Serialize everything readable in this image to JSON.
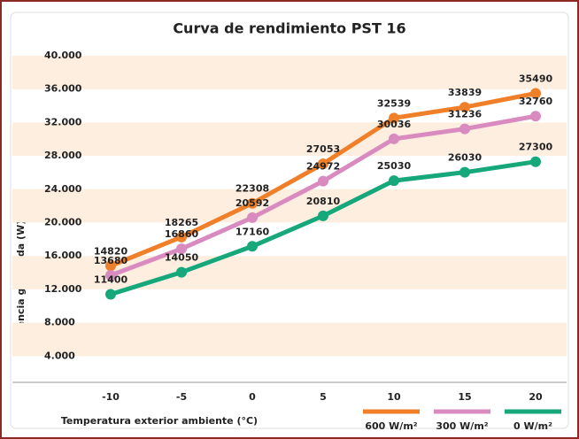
{
  "chart_data": {
    "type": "line",
    "title": "Curva de rendimiento PST 16",
    "x_label": "Temperatura exterior ambiente (°C)",
    "y_label": "Potencia generada (W)",
    "categories": [
      "-10",
      "-5",
      "0",
      "5",
      "10",
      "15",
      "20"
    ],
    "series": [
      {
        "name": "600 W/m²",
        "color": "#f07f2a",
        "values": [
          14820,
          18265,
          22308,
          27053,
          32539,
          33839,
          35490
        ]
      },
      {
        "name": "300 W/m²",
        "color": "#d98bc0",
        "values": [
          13680,
          16860,
          20592,
          24972,
          30036,
          31236,
          32760
        ]
      },
      {
        "name": "0 W/m²",
        "color": "#16a77a",
        "values": [
          11400,
          14050,
          17160,
          20810,
          25030,
          26030,
          27300
        ]
      }
    ],
    "ylim": [
      0,
      40000
    ],
    "yticks": [
      {
        "value": 4000,
        "label": "4.000"
      },
      {
        "value": 8000,
        "label": "8.000"
      },
      {
        "value": 12000,
        "label": "12.000"
      },
      {
        "value": 16000,
        "label": "16.000"
      },
      {
        "value": 20000,
        "label": "20.000"
      },
      {
        "value": 24000,
        "label": "24.000"
      },
      {
        "value": 28000,
        "label": "28.000"
      },
      {
        "value": 32000,
        "label": "32.000"
      },
      {
        "value": 36000,
        "label": "36.000"
      },
      {
        "value": 40000,
        "label": "40.000"
      }
    ],
    "grid": "bands",
    "legend": "bottom-right"
  }
}
